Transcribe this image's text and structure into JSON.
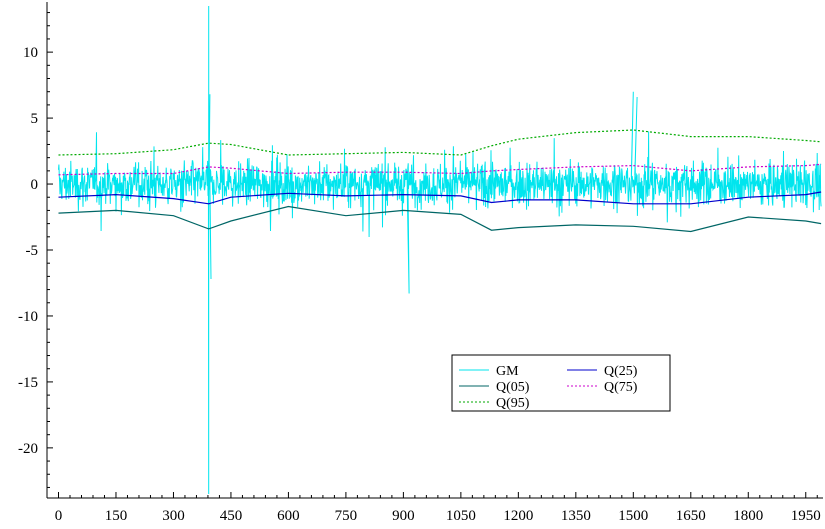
{
  "chart_data": {
    "type": "line",
    "title": "",
    "xlabel": "",
    "ylabel": "",
    "xlim": [
      -30,
      1995
    ],
    "ylim": [
      -23.8,
      13.8
    ],
    "x_ticks": [
      0,
      150,
      300,
      450,
      600,
      750,
      900,
      1050,
      1200,
      1350,
      1500,
      1650,
      1800,
      1950
    ],
    "y_ticks": [
      10,
      5,
      0,
      -5,
      -10,
      -15,
      -20
    ],
    "grid": false,
    "legend_position": "lower-right",
    "legend": [
      "GM",
      "Q(25)",
      "Q(05)",
      "Q(75)",
      "Q(95)"
    ],
    "series": [
      {
        "name": "GM",
        "color": "#00e5ee",
        "style": "solid",
        "kind": "noisy_series",
        "x": [
          0,
          1990
        ],
        "n_points": 1990,
        "notable": [
          {
            "x": 392,
            "y": 13.5
          },
          {
            "x": 392,
            "y": -23.5
          },
          {
            "x": 395,
            "y": 6.8
          },
          {
            "x": 398,
            "y": -7.2
          },
          {
            "x": 915,
            "y": -8.3
          },
          {
            "x": 1500,
            "y": 7.0
          },
          {
            "x": 1510,
            "y": 6.6
          }
        ]
      },
      {
        "name": "Q(25)",
        "color": "#0000cc",
        "style": "solid",
        "x": [
          0,
          150,
          300,
          392,
          450,
          600,
          750,
          900,
          1050,
          1130,
          1200,
          1350,
          1500,
          1650,
          1800,
          1950,
          1990
        ],
        "y": [
          -1.0,
          -0.8,
          -1.1,
          -1.5,
          -1.0,
          -0.7,
          -0.9,
          -0.8,
          -0.9,
          -1.4,
          -1.2,
          -1.2,
          -1.5,
          -1.5,
          -1.0,
          -0.8,
          -0.6
        ]
      },
      {
        "name": "Q(05)",
        "color": "#006666",
        "style": "solid",
        "x": [
          0,
          150,
          300,
          392,
          450,
          600,
          750,
          900,
          1050,
          1130,
          1200,
          1350,
          1500,
          1650,
          1800,
          1950,
          1990
        ],
        "y": [
          -2.2,
          -2.0,
          -2.4,
          -3.4,
          -2.8,
          -1.7,
          -2.4,
          -2.0,
          -2.3,
          -3.5,
          -3.3,
          -3.1,
          -3.2,
          -3.6,
          -2.5,
          -2.8,
          -3.0
        ]
      },
      {
        "name": "Q(75)",
        "color": "#cc00cc",
        "style": "dashed",
        "x": [
          0,
          150,
          300,
          392,
          450,
          600,
          750,
          900,
          1050,
          1130,
          1200,
          1350,
          1500,
          1650,
          1800,
          1950,
          1990
        ],
        "y": [
          0.7,
          0.8,
          0.8,
          1.3,
          1.2,
          0.8,
          0.9,
          0.9,
          0.8,
          1.0,
          1.1,
          1.3,
          1.4,
          1.0,
          1.3,
          1.4,
          1.5
        ]
      },
      {
        "name": "Q(95)",
        "color": "#00aa00",
        "style": "dashed",
        "x": [
          0,
          150,
          300,
          392,
          450,
          600,
          750,
          900,
          1050,
          1130,
          1200,
          1350,
          1500,
          1650,
          1800,
          1950,
          1990
        ],
        "y": [
          2.2,
          2.3,
          2.6,
          3.1,
          3.0,
          2.2,
          2.3,
          2.4,
          2.2,
          2.9,
          3.4,
          3.9,
          4.1,
          3.6,
          3.6,
          3.3,
          3.2
        ]
      }
    ]
  }
}
